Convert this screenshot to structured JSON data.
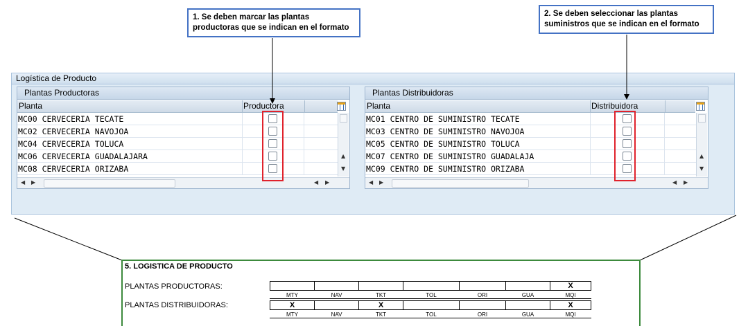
{
  "callouts": {
    "one": "1. Se deben marcar las plantas productoras que se indican en el formato",
    "two": "2. Se deben seleccionar las plantas suministros que se indican en el formato"
  },
  "frame": {
    "title": "Logística de Producto"
  },
  "producers": {
    "title": "Plantas Productoras",
    "col_plant": "Planta",
    "col_check": "Productora",
    "rows": [
      {
        "label": "MC00 CERVECERIA TECATE",
        "checked": false
      },
      {
        "label": "MC02 CERVECERIA NAVOJOA",
        "checked": false
      },
      {
        "label": "MC04 CERVECERIA TOLUCA",
        "checked": false
      },
      {
        "label": "MC06 CERVECERIA GUADALAJARA",
        "checked": false
      },
      {
        "label": "MC08 CERVECERIA ORIZABA",
        "checked": false
      }
    ]
  },
  "distributors": {
    "title": "Plantas Distribuidoras",
    "col_plant": "Planta",
    "col_check": "Distribuidora",
    "rows": [
      {
        "label": "MC01 CENTRO DE SUMINISTRO TECATE",
        "checked": false
      },
      {
        "label": "MC03 CENTRO DE SUMINISTRO NAVOJOA",
        "checked": false
      },
      {
        "label": "MC05 CENTRO DE SUMINISTRO TOLUCA",
        "checked": false
      },
      {
        "label": "MC07 CENTRO DE SUMINISTRO GUADALAJA",
        "checked": false
      },
      {
        "label": "MC09 CENTRO DE SUMINISTRO ORIZABA",
        "checked": false
      }
    ]
  },
  "form": {
    "title": "5. LOGISTICA DE PRODUCTO",
    "producers_label": "PLANTAS PRODUCTORAS:",
    "distributors_label": "PLANTAS DISTRIBUIDORAS:",
    "codes": [
      "MTY",
      "NAV",
      "TKT",
      "TOL",
      "ORI",
      "GUA",
      "MQI"
    ],
    "producers_marks": [
      "",
      "",
      "",
      "",
      "",
      "",
      "X"
    ],
    "distributors_marks": [
      "X",
      "",
      "X",
      "",
      "",
      "",
      "X"
    ]
  },
  "colors": {
    "highlight": "#e0222c",
    "callout_border": "#4472c4",
    "form_border": "#3c8a3c",
    "panel_bg": "#dfebf5"
  }
}
